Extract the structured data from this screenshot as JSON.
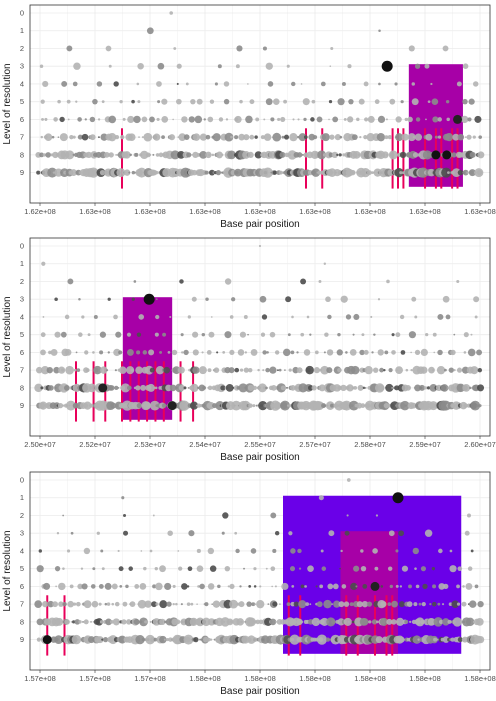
{
  "panels": [
    {
      "xlabel": "Base pair position",
      "ylabel": "Level of resolution",
      "y_ticks": [
        "0",
        "1",
        "2",
        "3",
        "4",
        "5",
        "6",
        "7",
        "8",
        "9"
      ],
      "x_tick_labels": [
        "1.62e+08",
        "1.63e+08",
        "1.63e+08",
        "1.63e+08",
        "1.63e+08",
        "1.63e+08",
        "1.63e+08",
        "1.63e+08",
        "1.63e+08"
      ],
      "xlim": [
        162490000.0,
        163340000.0
      ],
      "highlight_regions": [
        {
          "xmin": 163190000.0,
          "xmax": 163290000.0,
          "ymin_level": 3,
          "ymax_level": 9.8,
          "color": "#a700a7"
        }
      ],
      "focal_points": [
        {
          "x": 163150000.0,
          "level": 3,
          "size": "large",
          "color": "#111111"
        },
        {
          "x": 163280000.0,
          "level": 6,
          "size": "medium",
          "color": "#222222"
        },
        {
          "x": 163240000.0,
          "level": 8,
          "size": "medium",
          "color": "#111111"
        },
        {
          "x": 163260000.0,
          "level": 8,
          "size": "medium",
          "color": "#111111"
        }
      ],
      "hits": [
        162660000.0,
        163000000.0,
        163030000.0,
        163160000.0,
        163170000.0,
        163180000.0,
        163220000.0,
        163240000.0,
        163250000.0,
        163270000.0,
        163280000.0
      ]
    },
    {
      "xlabel": "Base pair position",
      "ylabel": "Level of resolution",
      "y_ticks": [
        "0",
        "1",
        "2",
        "3",
        "4",
        "5",
        "6",
        "7",
        "8",
        "9"
      ],
      "x_tick_labels": [
        "2.50e+07",
        "2.52e+07",
        "2.53e+07",
        "2.54e+07",
        "2.55e+07",
        "2.57e+07",
        "2.58e+07",
        "2.59e+07",
        "2.60e+07"
      ],
      "xlim": [
        24960000.0,
        26060000.0
      ],
      "highlight_regions": [
        {
          "xmin": 25182000.0,
          "xmax": 25300000.0,
          "ymin_level": 3,
          "ymax_level": 9.8,
          "color": "#a700a7"
        }
      ],
      "focal_points": [
        {
          "x": 25245000.0,
          "level": 3,
          "size": "large",
          "color": "#111111"
        },
        {
          "x": 25134000.0,
          "level": 8,
          "size": "medium",
          "color": "#222222"
        },
        {
          "x": 25300000.0,
          "level": 9,
          "size": "medium",
          "color": "#222222"
        }
      ],
      "hits": [
        25070000.0,
        25112000.0,
        25140000.0,
        25180000.0,
        25200000.0,
        25220000.0,
        25240000.0,
        25260000.0,
        25280000.0,
        25320000.0,
        25350000.0
      ]
    },
    {
      "xlabel": "Base pair position",
      "ylabel": "Level of resolution",
      "y_ticks": [
        "0",
        "1",
        "2",
        "3",
        "4",
        "5",
        "6",
        "7",
        "8",
        "9"
      ],
      "x_tick_labels": [
        "1.57e+08",
        "1.57e+08",
        "1.57e+08",
        "1.58e+08",
        "1.58e+08",
        "1.58e+08",
        "1.58e+08",
        "1.58e+08",
        "1.58e+08"
      ],
      "xlim": [
        157580000.0,
        158380000.0
      ],
      "highlight_regions": [
        {
          "xmin": 158020000.0,
          "xmax": 158330000.0,
          "ymin_level": 1,
          "ymax_level": 9.8,
          "color": "#6a00e8"
        },
        {
          "xmin": 158120000.0,
          "xmax": 158220000.0,
          "ymin_level": 3,
          "ymax_level": 9.8,
          "color": "#a700a7"
        }
      ],
      "focal_points": [
        {
          "x": 158220000.0,
          "level": 1,
          "size": "large",
          "color": "#111111"
        },
        {
          "x": 158180000.0,
          "level": 6,
          "size": "medium",
          "color": "#222222"
        },
        {
          "x": 157610000.0,
          "level": 9,
          "size": "medium",
          "color": "#111111"
        }
      ],
      "hits": [
        157610000.0,
        157640000.0,
        158030000.0,
        158050000.0,
        158130000.0,
        158150000.0,
        158180000.0,
        158200000.0,
        158210000.0
      ]
    }
  ],
  "colors": {
    "panel_bg": "#ffffff",
    "grid": "#ebebeb",
    "border": "#333333",
    "hit_line": "#e8005a",
    "dot_light": "#b3b3b3",
    "dot_mid": "#8c8c8c",
    "dot_dark": "#4d4d4d"
  }
}
